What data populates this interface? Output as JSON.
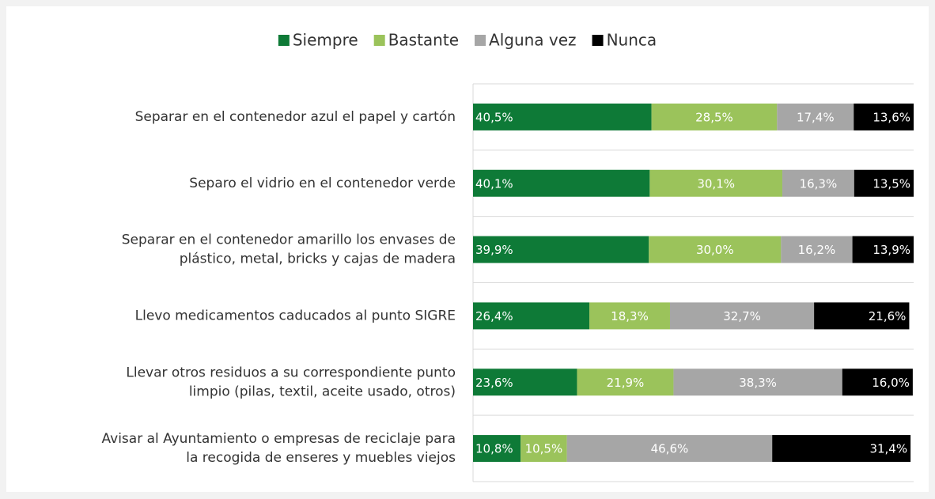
{
  "chart_data": {
    "type": "stacked_barh",
    "categories": [
      "Separar en el contenedor azul el papel y cartón",
      "Separo el vidrio en el contenedor verde",
      "Separar en el contenedor amarillo los envases de\nplástico, metal, bricks y cajas de madera",
      "Llevo medicamentos caducados al punto SIGRE",
      "Llevar otros residuos a su correspondiente punto\nlimpio (pilas, textil, aceite usado, otros)",
      "Avisar al Ayuntamiento o empresas de reciclaje para\nla recogida de enseres y muebles viejos"
    ],
    "series": [
      {
        "name": "Siempre",
        "color": "#0e7a37",
        "values": [
          40.5,
          40.1,
          39.9,
          26.4,
          23.6,
          10.8
        ],
        "value_labels": [
          "40,5%",
          "40,1%",
          "39,9%",
          "26,4%",
          "23,6%",
          "10,8%"
        ]
      },
      {
        "name": "Bastante",
        "color": "#9bc35b",
        "values": [
          28.5,
          30.1,
          30.0,
          18.3,
          21.9,
          10.5
        ],
        "value_labels": [
          "28,5%",
          "30,1%",
          "30,0%",
          "18,3%",
          "21,9%",
          "10,5%"
        ]
      },
      {
        "name": "Alguna vez",
        "color": "#a6a6a6",
        "values": [
          17.4,
          16.3,
          16.2,
          32.7,
          38.3,
          46.6
        ],
        "value_labels": [
          "17,4%",
          "16,3%",
          "16,2%",
          "32,7%",
          "38,3%",
          "46,6%"
        ]
      },
      {
        "name": "Nunca",
        "color": "#000000",
        "values": [
          13.6,
          13.5,
          13.9,
          21.6,
          16.0,
          31.4
        ],
        "value_labels": [
          "13,6%",
          "13,5%",
          "13,9%",
          "21,6%",
          "16,0%",
          "31,4%"
        ]
      }
    ],
    "xlim": [
      0,
      100
    ],
    "legend": "top",
    "grid": true
  }
}
